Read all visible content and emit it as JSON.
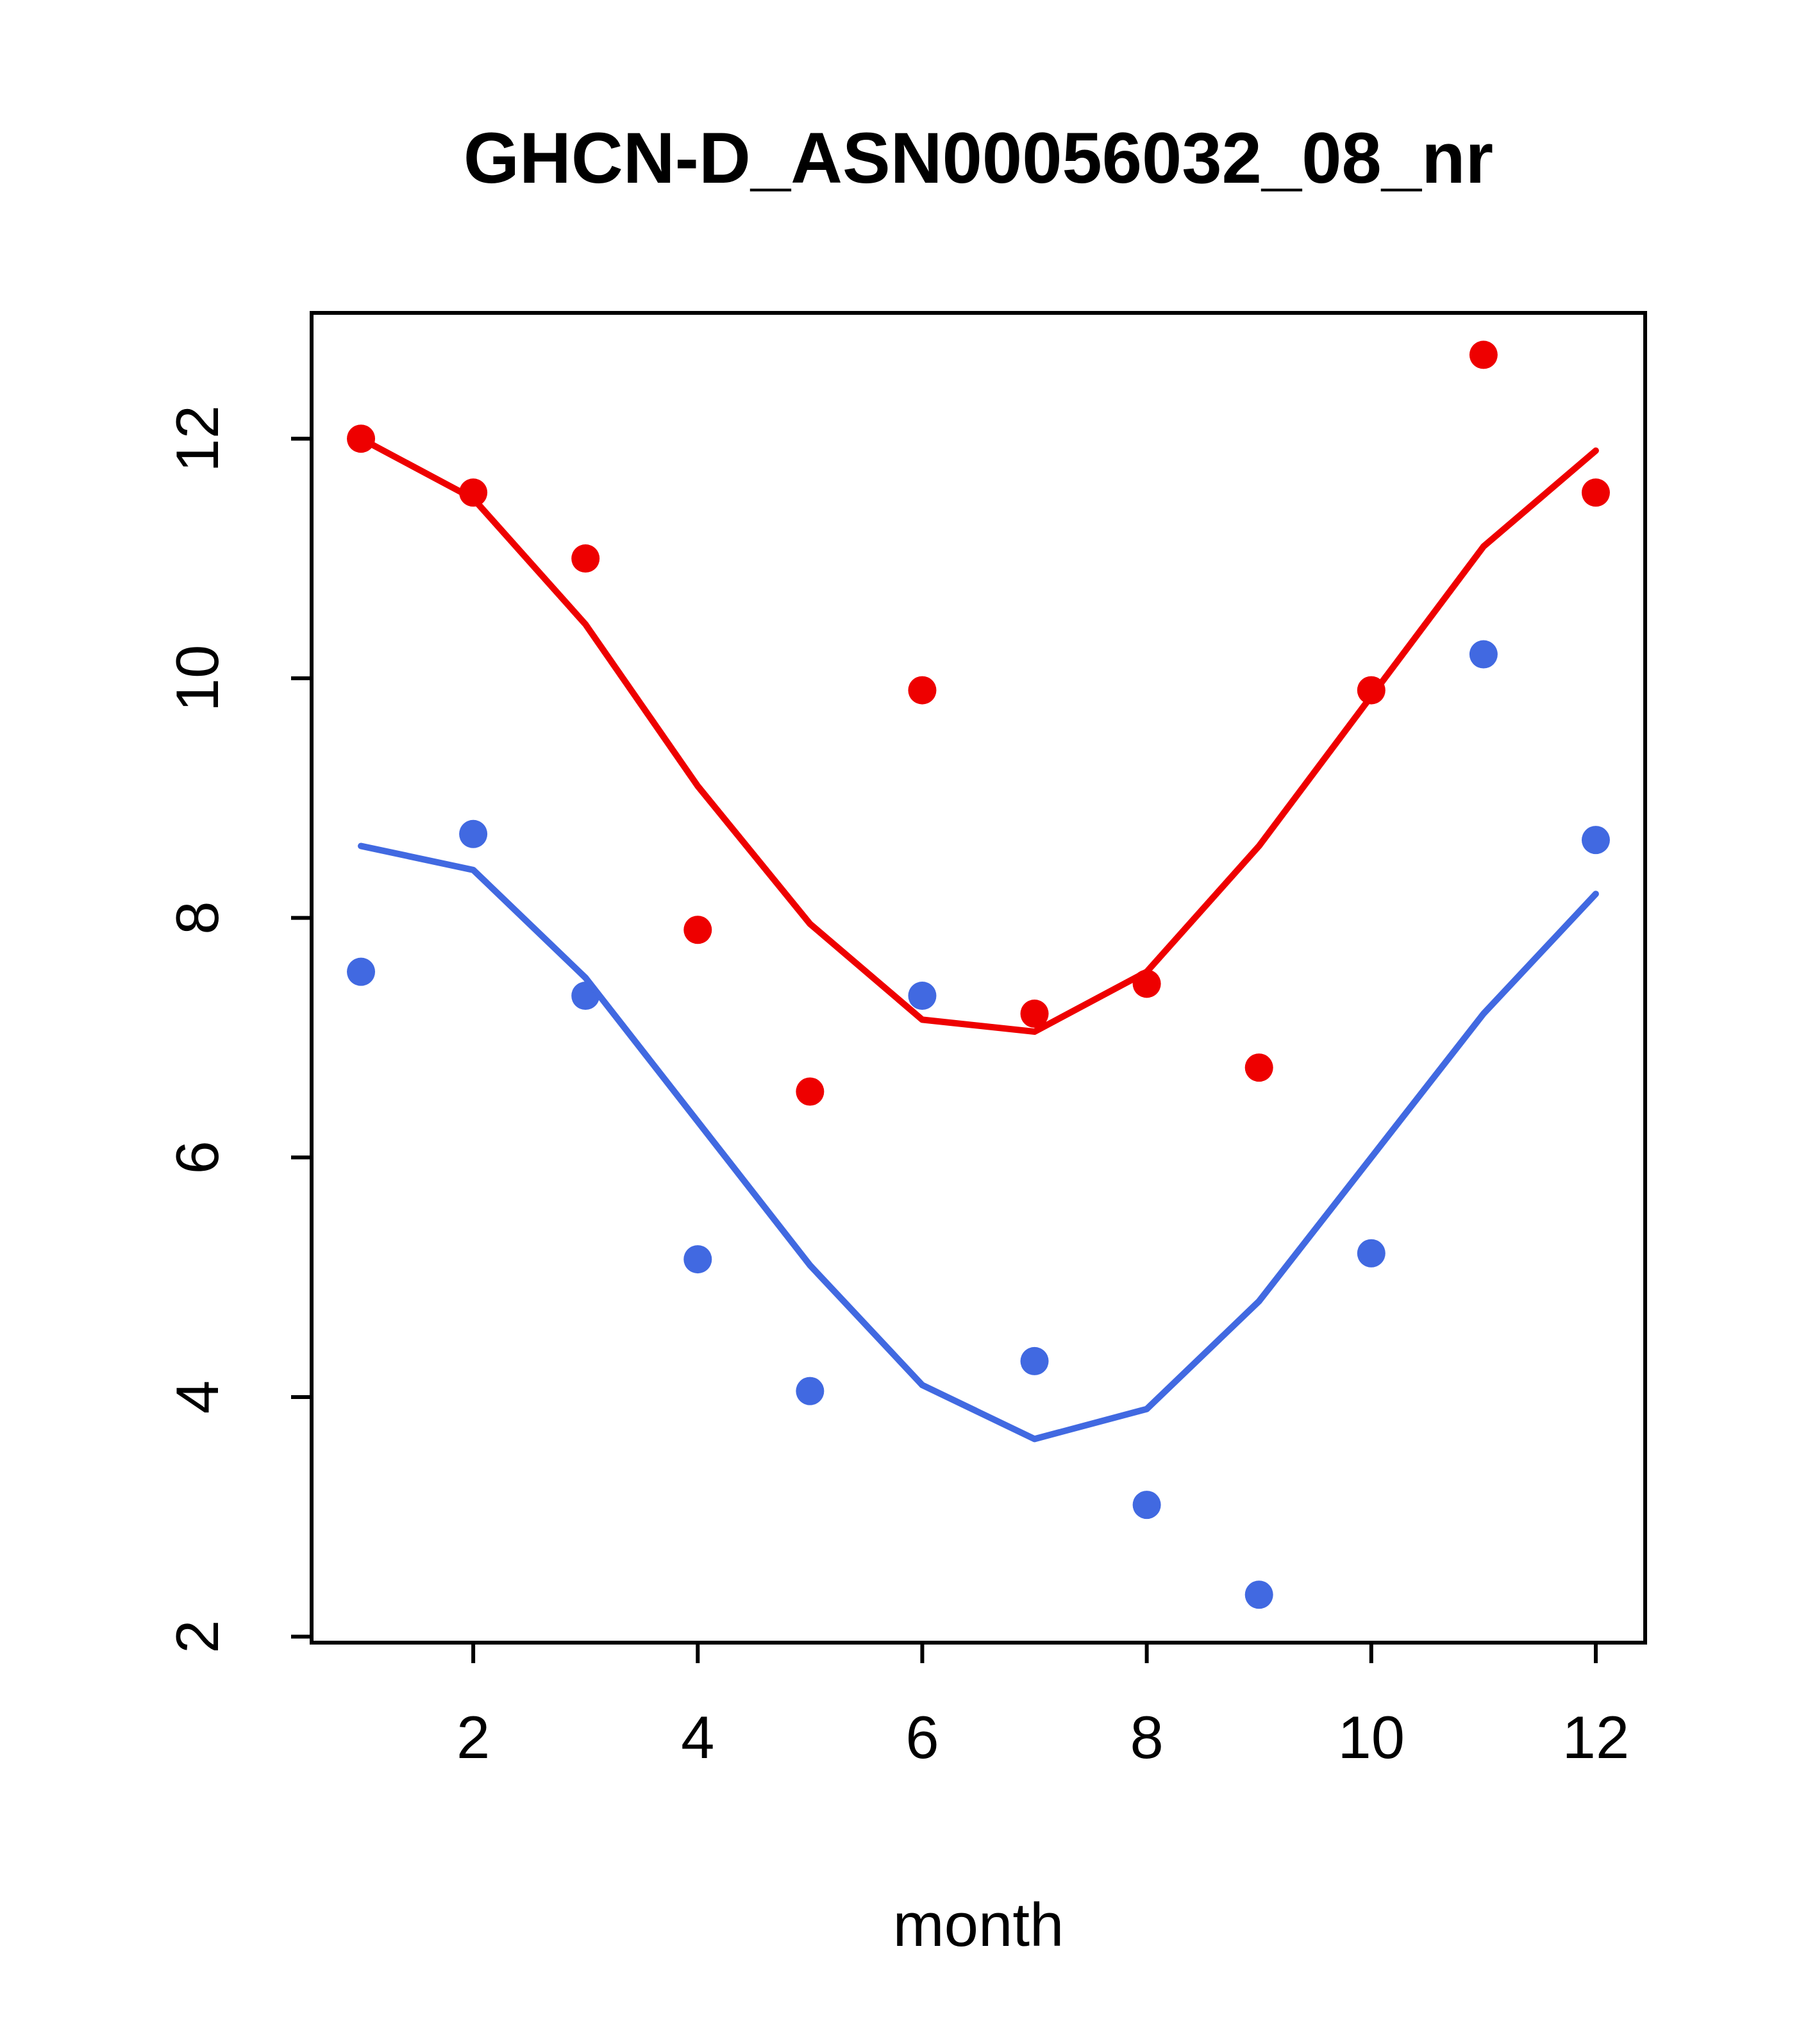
{
  "chart_data": {
    "type": "scatter",
    "title": "GHCN-D_ASN00056032_08_nr",
    "xlabel": "month",
    "ylabel": "",
    "xlim": [
      0.56,
      12.44
    ],
    "ylim": [
      1.95,
      13.05
    ],
    "xticks": [
      2,
      4,
      6,
      8,
      10,
      12
    ],
    "yticks": [
      2,
      4,
      6,
      8,
      10,
      12
    ],
    "grid": false,
    "legend_position": "none",
    "x": [
      1,
      2,
      3,
      4,
      5,
      6,
      7,
      8,
      9,
      10,
      11,
      12
    ],
    "series": [
      {
        "name": "red-points",
        "kind": "points",
        "color": "#ee0000",
        "values": [
          12.0,
          11.55,
          11.0,
          7.9,
          6.55,
          9.9,
          7.2,
          7.45,
          6.75,
          9.9,
          12.7,
          11.55
        ]
      },
      {
        "name": "red-trend-line",
        "kind": "line",
        "color": "#ee0000",
        "values": [
          12.0,
          11.5,
          10.45,
          9.1,
          7.95,
          7.15,
          7.05,
          7.55,
          8.6,
          9.85,
          11.1,
          11.9
        ]
      },
      {
        "name": "blue-points",
        "kind": "points",
        "color": "#4169e1",
        "values": [
          7.55,
          8.7,
          7.35,
          5.15,
          4.05,
          7.35,
          4.3,
          3.1,
          2.35,
          5.2,
          10.2,
          8.65
        ]
      },
      {
        "name": "blue-trend-line",
        "kind": "line",
        "color": "#4169e1",
        "values": [
          8.6,
          8.4,
          7.5,
          6.3,
          5.1,
          4.1,
          3.65,
          3.9,
          4.8,
          6.0,
          7.2,
          8.2
        ]
      }
    ]
  }
}
